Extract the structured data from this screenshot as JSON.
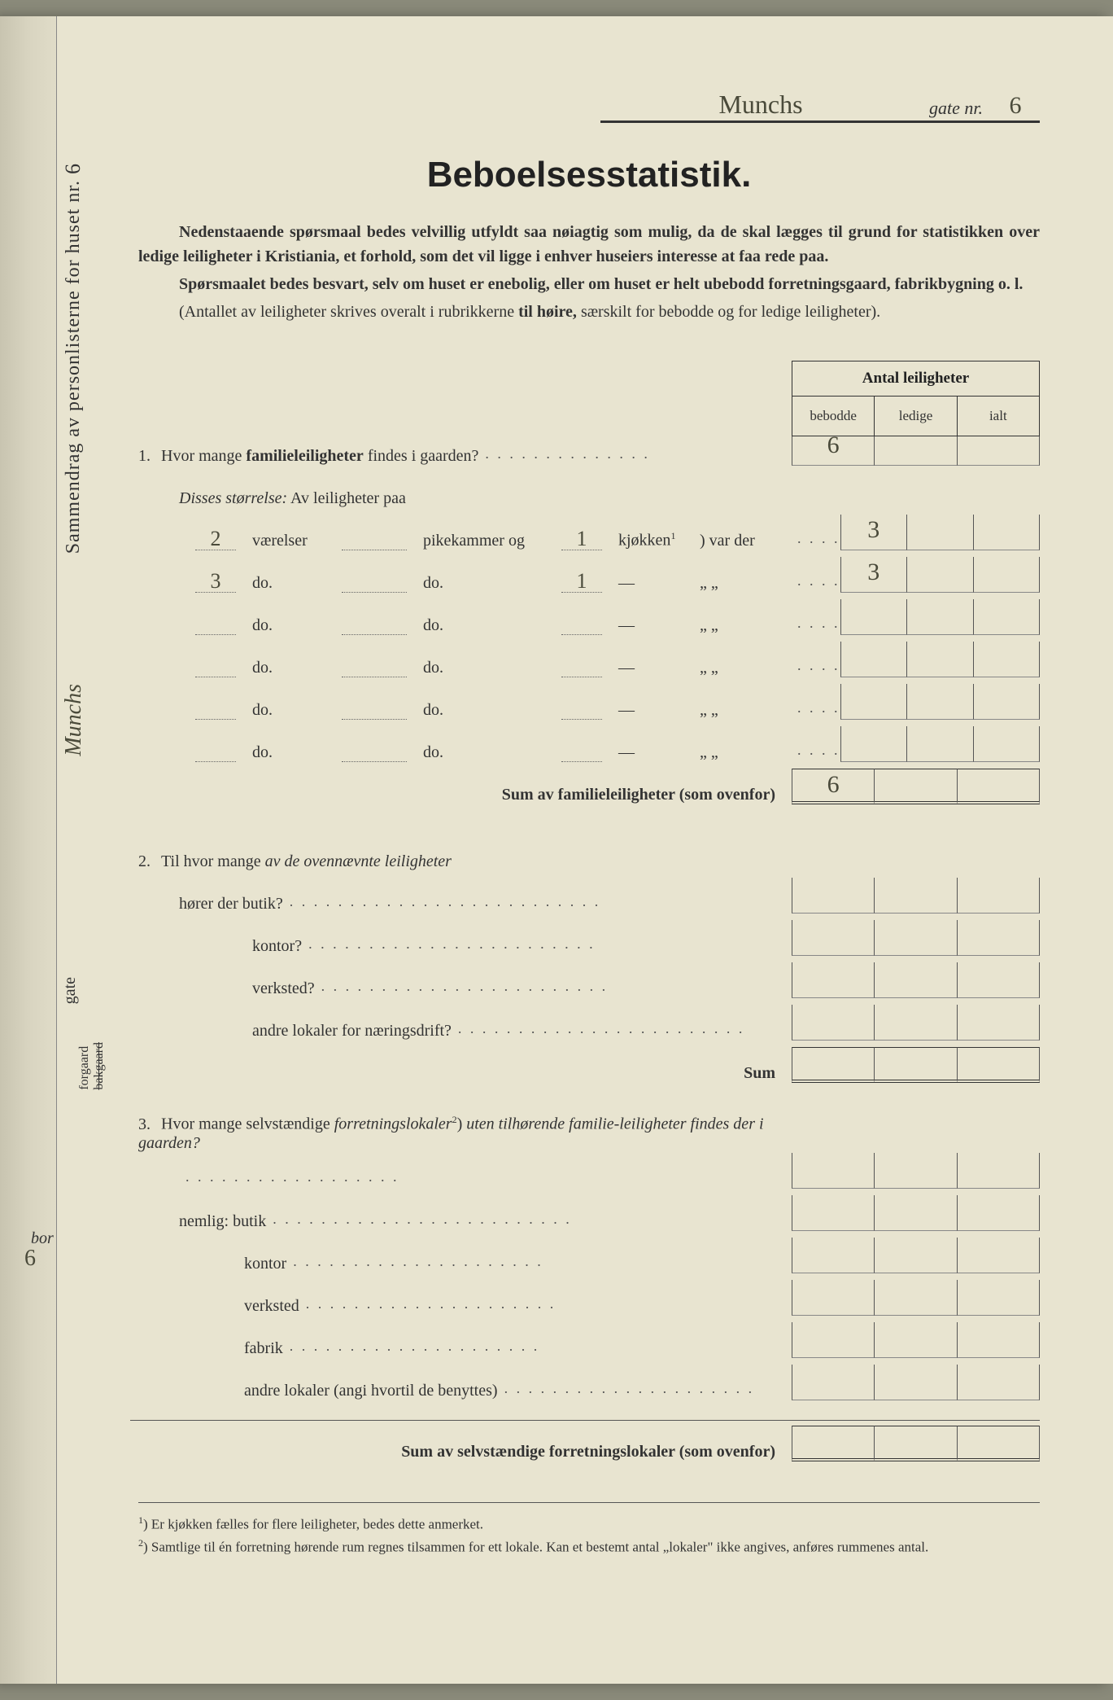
{
  "header": {
    "street_name": "Munchs",
    "gate_label": "gate nr.",
    "gate_number": "6"
  },
  "sidebar": {
    "main_text": "Sammendrag av personlisterne for huset nr.",
    "huset_nr": "6",
    "street_cursive": "Munchs",
    "gate": "gate",
    "forgaard": "forgaard",
    "bakgaard": "bakgaard",
    "bor": "bor",
    "bor_num": "6"
  },
  "title": "Beboelsesstatistik.",
  "intro": {
    "p1": "Nedenstaaende spørsmaal bedes velvillig utfyldt saa nøiagtig som mulig, da de skal lægges til grund for statistikken over ledige leiligheter i Kristiania, et forhold, som det vil ligge i enhver huseiers interesse at faa rede paa.",
    "p2": "Spørsmaalet bedes besvart, selv om huset er enebolig, eller om huset er helt ubebodd forretningsgaard, fabrikbygning o. l.",
    "p3a": "(Antallet av leiligheter skrives overalt i rubrikkerne ",
    "p3b": "til høire,",
    "p3c": " særskilt for bebodde og for ledige leiligheter)."
  },
  "table_header": {
    "title": "Antal leiligheter",
    "col1": "bebodde",
    "col2": "ledige",
    "col3": "ialt"
  },
  "q1": {
    "num": "1.",
    "text_a": "Hvor mange ",
    "text_b": "familieleiligheter",
    "text_c": " findes i gaarden?",
    "value": "6",
    "disses": "Disses størrelse:",
    "disses_suffix": " Av leiligheter paa",
    "rows": [
      {
        "vaer": "2",
        "vaer_lbl": "værelser",
        "pike": "",
        "pike_lbl": "pikekammer og",
        "kjok": "1",
        "kjok_lbl": "kjøkken",
        "kjok_sup": "1",
        "trail": ") var der",
        "val": "3"
      },
      {
        "vaer": "3",
        "vaer_lbl": "do.",
        "pike": "",
        "pike_lbl": "do.",
        "kjok": "1",
        "kjok_lbl": "—",
        "kjok_sup": "",
        "trail": "„    „",
        "val": "3"
      },
      {
        "vaer": "",
        "vaer_lbl": "do.",
        "pike": "",
        "pike_lbl": "do.",
        "kjok": "",
        "kjok_lbl": "—",
        "kjok_sup": "",
        "trail": "„    „",
        "val": ""
      },
      {
        "vaer": "",
        "vaer_lbl": "do.",
        "pike": "",
        "pike_lbl": "do.",
        "kjok": "",
        "kjok_lbl": "—",
        "kjok_sup": "",
        "trail": "„    „",
        "val": ""
      },
      {
        "vaer": "",
        "vaer_lbl": "do.",
        "pike": "",
        "pike_lbl": "do.",
        "kjok": "",
        "kjok_lbl": "—",
        "kjok_sup": "",
        "trail": "„    „",
        "val": ""
      },
      {
        "vaer": "",
        "vaer_lbl": "do.",
        "pike": "",
        "pike_lbl": "do.",
        "kjok": "",
        "kjok_lbl": "—",
        "kjok_sup": "",
        "trail": "„    „",
        "val": ""
      }
    ],
    "sum_label": "Sum av familieleiligheter",
    "sum_suffix": " (som ovenfor)",
    "sum_value": "6"
  },
  "q2": {
    "num": "2.",
    "text_a": "Til hvor mange ",
    "text_b": "av de ovennævnte leiligheter",
    "row_horer": "hører der butik?",
    "rows": [
      "kontor?",
      "verksted?",
      "andre lokaler for næringsdrift?"
    ],
    "sum": "Sum"
  },
  "q3": {
    "num": "3.",
    "text_a": "Hvor mange selvstændige ",
    "text_b": "forretningslokaler",
    "text_sup": "2",
    "text_c": ") ",
    "text_d": "uten tilhørende familie-leiligheter findes der i gaarden?",
    "nemlig": "nemlig: butik",
    "rows": [
      "kontor",
      "verksted",
      "fabrik",
      "andre lokaler (angi hvortil de benyttes)"
    ],
    "sum_label": "Sum av selvstændige forretningslokaler",
    "sum_suffix": " (som ovenfor)"
  },
  "footnotes": {
    "f1_sup": "1",
    "f1": ") Er kjøkken fælles for flere leiligheter, bedes dette anmerket.",
    "f2_sup": "2",
    "f2": ") Samtlige til én forretning hørende rum regnes tilsammen for ett lokale. Kan et bestemt antal „lokaler\" ikke angives, anføres rummenes antal."
  },
  "colors": {
    "paper": "#e8e4d0",
    "ink": "#333333",
    "handwriting": "#4a4a3a"
  }
}
